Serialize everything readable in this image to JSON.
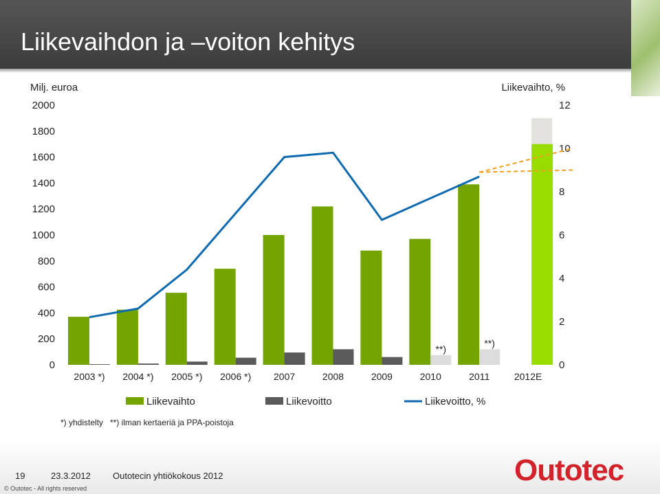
{
  "slide": {
    "title": "Liikevaihdon ja –voiton kehitys",
    "page_number": "19",
    "date": "23.3.2012",
    "event": "Outotecin yhtiökokous 2012",
    "copyright": "© Outotec - All rights reserved",
    "logo_text": "Outotec",
    "footnotes": [
      "*) yhdistelty",
      "**) ilman kertaeriä ja PPA-poistoja"
    ]
  },
  "chart_data": {
    "type": "bar",
    "y_left_label": "Milj. euroa",
    "y_right_label": "Liikevaihto, %",
    "y_left_range": [
      0,
      2000
    ],
    "y_left_ticks": [
      0,
      200,
      400,
      600,
      800,
      1000,
      1200,
      1400,
      1600,
      1800,
      2000
    ],
    "y_right_range": [
      0,
      12
    ],
    "y_right_ticks": [
      0,
      2,
      4,
      6,
      8,
      10,
      12
    ],
    "categories": [
      "2003 *)",
      "2004 *)",
      "2005 *)",
      "2006 *)",
      "2007",
      "2008",
      "2009",
      "2010",
      "2011",
      "2012E"
    ],
    "series": [
      {
        "name": "Liikevaihto",
        "type": "bar",
        "axis": "left",
        "color": "#73a400",
        "values": [
          370,
          425,
          555,
          740,
          1000,
          1220,
          880,
          970,
          1390,
          1700
        ],
        "estimate_color": "#99dd00",
        "estimate_range_top": 1900,
        "estimate_range_color": "#e3e1dd"
      },
      {
        "name": "Liikevoitto",
        "type": "bar",
        "axis": "left",
        "color": "#5a5a5a",
        "values": [
          5,
          10,
          25,
          55,
          95,
          120,
          60,
          75,
          120,
          null
        ],
        "excluded_color": "#dcdcdc",
        "excluded_indices": [
          7,
          8
        ]
      },
      {
        "name": "Liikevoitto, %",
        "type": "line",
        "axis": "right",
        "color": "#0e6ab0",
        "values": [
          2.2,
          2.6,
          4.4,
          7.0,
          9.6,
          9.8,
          6.7,
          null,
          8.7,
          null
        ],
        "estimate_color": "#f0a020",
        "estimate_range": [
          8.9,
          9.0,
          10.0
        ]
      }
    ],
    "bar_annotations": [
      {
        "index": 7,
        "text": "**)"
      },
      {
        "index": 8,
        "text": "**)"
      }
    ],
    "legend_position": "bottom",
    "grid": false
  }
}
